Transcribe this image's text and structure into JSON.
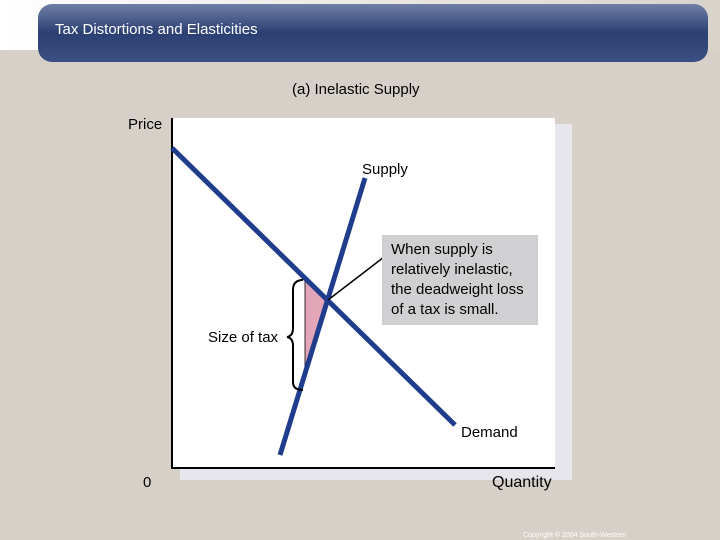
{
  "header": {
    "title": "Tax Distortions and Elasticities"
  },
  "diagram": {
    "title": "(a) Inelastic Supply",
    "y_axis_label": "Price",
    "x_axis_label": "Quantity",
    "origin_label": "0",
    "supply_label": "Supply",
    "demand_label": "Demand",
    "tax_label": "Size of tax",
    "callout_lines": [
      "When supply is",
      "relatively inelastic,",
      "the deadweight loss",
      "of a tax is small."
    ]
  },
  "footer": {
    "copyright": "Copyright © 2004  South-Western"
  }
}
